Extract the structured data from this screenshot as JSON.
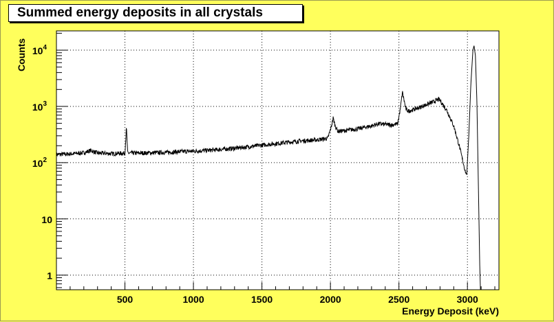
{
  "chart_data": {
    "type": "line",
    "title": "Summed energy deposits in all crystals",
    "xlabel": "Energy Deposit (keV)",
    "ylabel": "Counts",
    "xlim": [
      0,
      3230
    ],
    "ylim": [
      0.55,
      22000
    ],
    "yscale": "log",
    "grid": true,
    "x_ticks": [
      {
        "value": 500,
        "label": "500"
      },
      {
        "value": 1000,
        "label": "1000"
      },
      {
        "value": 1500,
        "label": "1500"
      },
      {
        "value": 2000,
        "label": "2000"
      },
      {
        "value": 2500,
        "label": "2500"
      },
      {
        "value": 3000,
        "label": "3000"
      }
    ],
    "y_ticks": [
      {
        "value": 1,
        "base": "1",
        "exp": ""
      },
      {
        "value": 10,
        "base": "10",
        "exp": ""
      },
      {
        "value": 100,
        "base": "10",
        "exp": "2"
      },
      {
        "value": 1000,
        "base": "10",
        "exp": "3"
      },
      {
        "value": 10000,
        "base": "10",
        "exp": "4"
      }
    ],
    "series": [
      {
        "points": [
          [
            0,
            140
          ],
          [
            100,
            143
          ],
          [
            200,
            150
          ],
          [
            250,
            165
          ],
          [
            300,
            148
          ],
          [
            400,
            145
          ],
          [
            500,
            147
          ],
          [
            511,
            420
          ],
          [
            520,
            148
          ],
          [
            600,
            148
          ],
          [
            700,
            150
          ],
          [
            800,
            152
          ],
          [
            900,
            157
          ],
          [
            1000,
            160
          ],
          [
            1100,
            165
          ],
          [
            1200,
            172
          ],
          [
            1300,
            180
          ],
          [
            1400,
            192
          ],
          [
            1500,
            205
          ],
          [
            1600,
            218
          ],
          [
            1700,
            232
          ],
          [
            1800,
            245
          ],
          [
            1900,
            255
          ],
          [
            1980,
            270
          ],
          [
            2005,
            420
          ],
          [
            2020,
            620
          ],
          [
            2035,
            450
          ],
          [
            2055,
            360
          ],
          [
            2100,
            370
          ],
          [
            2200,
            400
          ],
          [
            2300,
            450
          ],
          [
            2350,
            490
          ],
          [
            2400,
            480
          ],
          [
            2450,
            470
          ],
          [
            2490,
            490
          ],
          [
            2510,
            900
          ],
          [
            2525,
            1800
          ],
          [
            2535,
            1400
          ],
          [
            2550,
            900
          ],
          [
            2570,
            830
          ],
          [
            2600,
            870
          ],
          [
            2650,
            960
          ],
          [
            2700,
            1080
          ],
          [
            2750,
            1200
          ],
          [
            2790,
            1340
          ],
          [
            2800,
            1280
          ],
          [
            2850,
            850
          ],
          [
            2900,
            450
          ],
          [
            2940,
            200
          ],
          [
            2965,
            110
          ],
          [
            2985,
            70
          ],
          [
            2995,
            60
          ],
          [
            3010,
            300
          ],
          [
            3025,
            2500
          ],
          [
            3040,
            10000
          ],
          [
            3048,
            12000
          ],
          [
            3058,
            8000
          ],
          [
            3070,
            1000
          ],
          [
            3080,
            40
          ],
          [
            3090,
            1.5
          ],
          [
            3095,
            0.55
          ]
        ]
      }
    ]
  }
}
